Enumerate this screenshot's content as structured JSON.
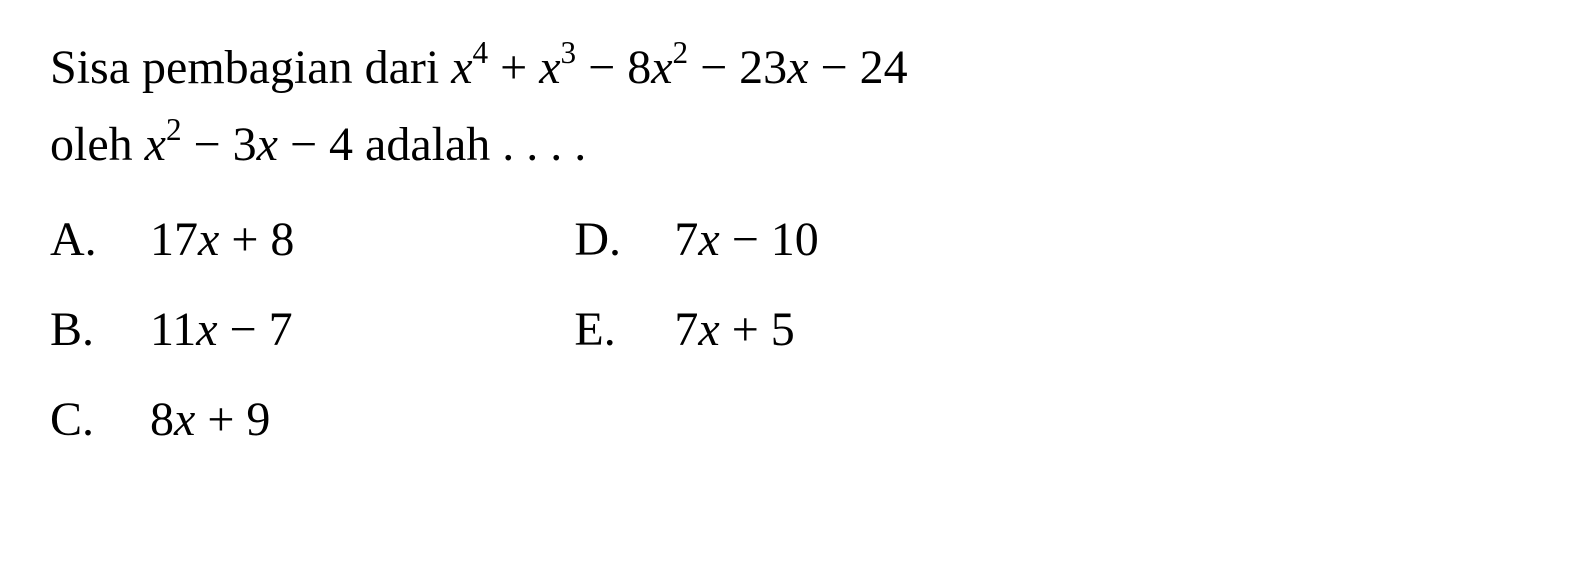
{
  "question": {
    "line1_prefix": "Sisa pembagian dari ",
    "poly1_terms": [
      "x",
      "4",
      " + ",
      "x",
      "3",
      " − 8",
      "x",
      "2",
      " − 23",
      "x",
      " − 24"
    ],
    "line2_prefix": "oleh ",
    "poly2_terms": [
      "x",
      "2",
      " − 3",
      "x",
      " − 4"
    ],
    "line2_suffix": " adalah . . . ."
  },
  "options": {
    "left": [
      {
        "letter": "A.",
        "expr_parts": [
          "17",
          "x",
          " + 8"
        ]
      },
      {
        "letter": "B.",
        "expr_parts": [
          "11",
          "x",
          " − 7"
        ]
      },
      {
        "letter": "C.",
        "expr_parts": [
          "8",
          "x",
          " + 9"
        ]
      }
    ],
    "right": [
      {
        "letter": "D.",
        "expr_parts": [
          "7",
          "x",
          " − 10"
        ]
      },
      {
        "letter": "E.",
        "expr_parts": [
          "7",
          "x",
          " + 5"
        ]
      }
    ]
  },
  "styling": {
    "font_family": "Times New Roman",
    "font_size_pt": 36,
    "text_color": "#000000",
    "background_color": "#ffffff"
  }
}
